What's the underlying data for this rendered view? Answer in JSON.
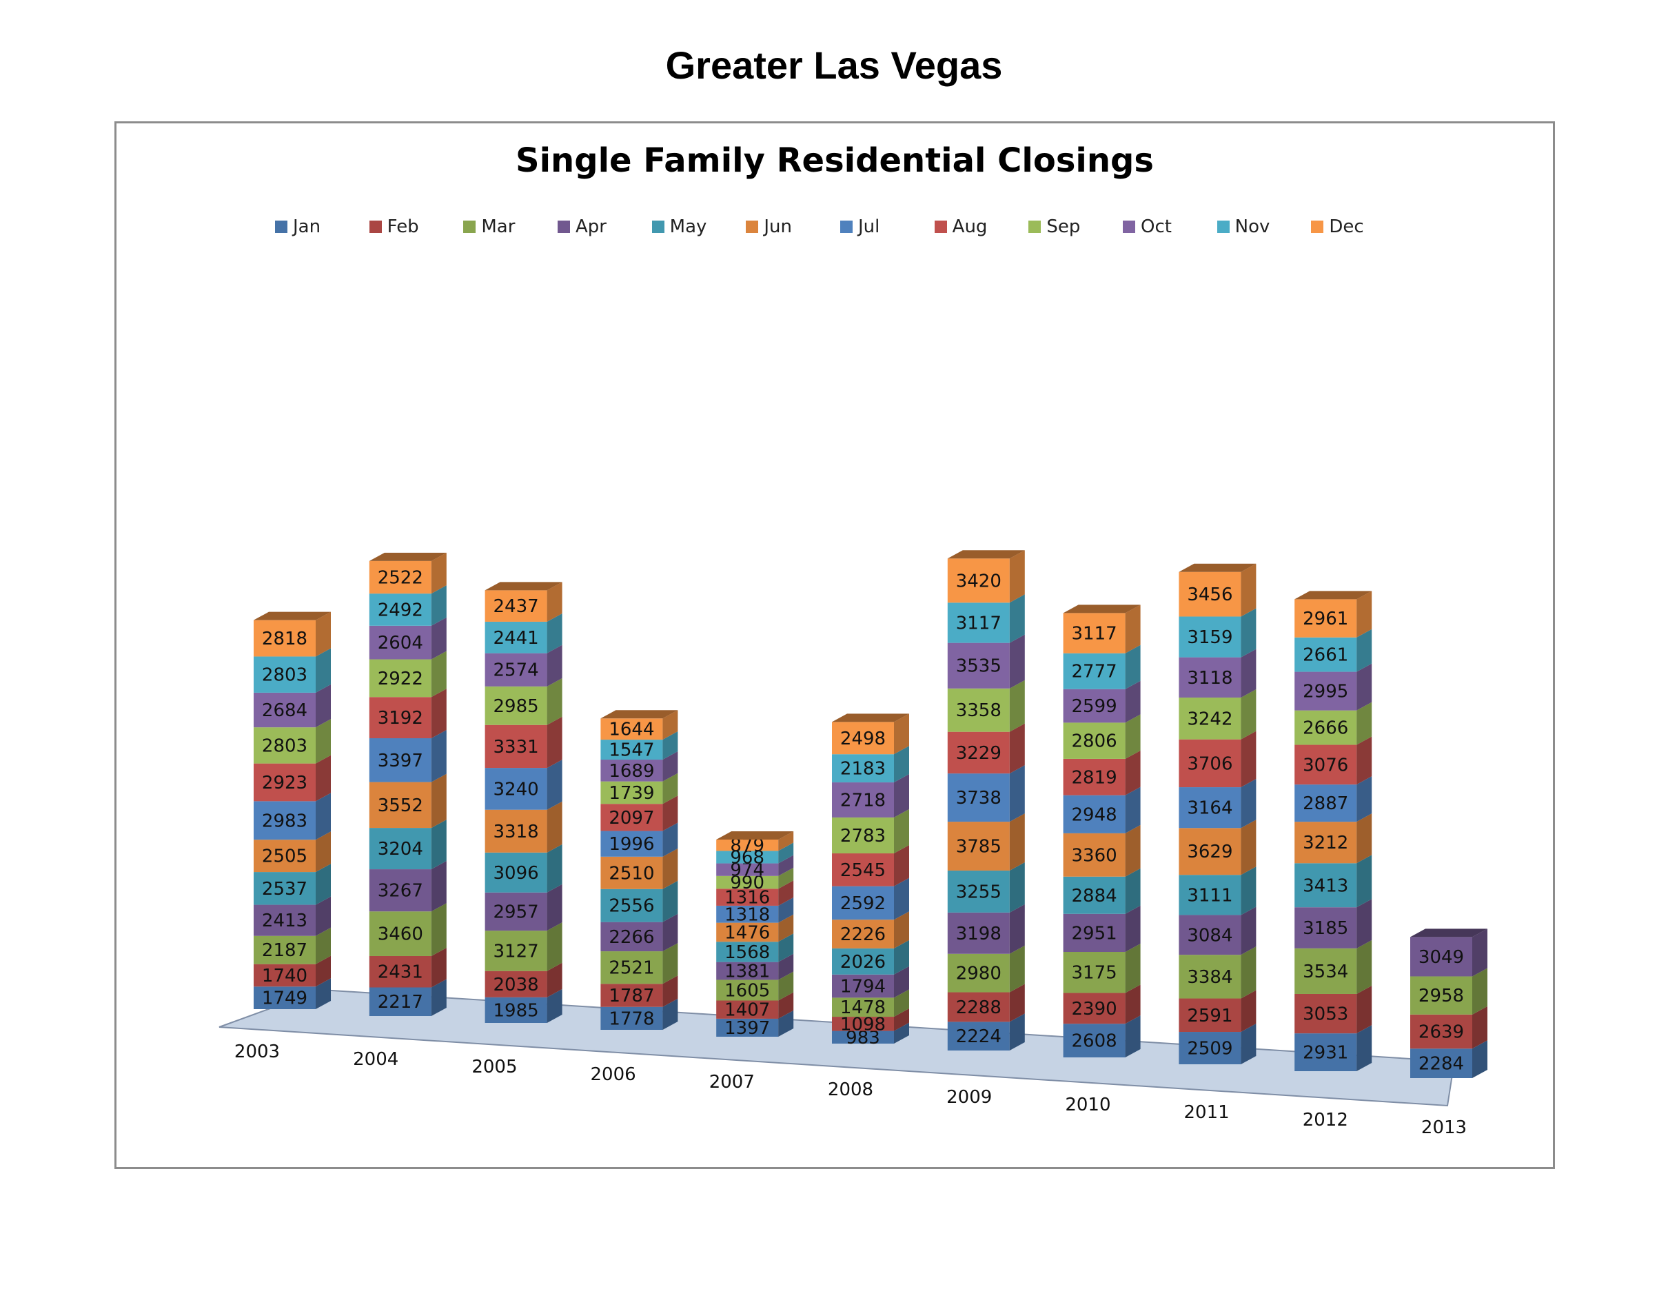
{
  "page_title": "Greater Las Vegas",
  "chart_data": {
    "type": "bar",
    "stacked": true,
    "style": "3d",
    "title": "Single Family Residential Closings",
    "xlabel": "",
    "ylabel": "",
    "legend_position": "top",
    "categories": [
      "2003",
      "2004",
      "2005",
      "2006",
      "2007",
      "2008",
      "2009",
      "2010",
      "2011",
      "2012",
      "2013"
    ],
    "series": [
      {
        "name": "Jan",
        "color": "#4572A7",
        "values": [
          1749,
          2217,
          1985,
          1778,
          1397,
          983,
          2224,
          2608,
          2509,
          2931,
          2284
        ]
      },
      {
        "name": "Feb",
        "color": "#AA4643",
        "values": [
          1740,
          2431,
          2038,
          1787,
          1407,
          1098,
          2288,
          2390,
          2591,
          3053,
          2639
        ]
      },
      {
        "name": "Mar",
        "color": "#89A54E",
        "values": [
          2187,
          3460,
          3127,
          2521,
          1605,
          1478,
          2980,
          3175,
          3384,
          3534,
          2958
        ]
      },
      {
        "name": "Apr",
        "color": "#71588F",
        "values": [
          2413,
          3267,
          2957,
          2266,
          1381,
          1794,
          3198,
          2951,
          3084,
          3185,
          3049
        ]
      },
      {
        "name": "May",
        "color": "#4198AF",
        "values": [
          2537,
          3204,
          3096,
          2556,
          1568,
          2026,
          3255,
          2884,
          3111,
          3413,
          null
        ]
      },
      {
        "name": "Jun",
        "color": "#DB843D",
        "values": [
          2505,
          3552,
          3318,
          2510,
          1476,
          2226,
          3785,
          3360,
          3629,
          3212,
          null
        ]
      },
      {
        "name": "Jul",
        "color": "#4F81BD",
        "values": [
          2983,
          3397,
          3240,
          1996,
          1318,
          2592,
          3738,
          2948,
          3164,
          2887,
          null
        ]
      },
      {
        "name": "Aug",
        "color": "#C0504D",
        "values": [
          2923,
          3192,
          3331,
          2097,
          1316,
          2545,
          3229,
          2819,
          3706,
          3076,
          null
        ]
      },
      {
        "name": "Sep",
        "color": "#9BBB59",
        "values": [
          2803,
          2922,
          2985,
          1739,
          990,
          2783,
          3358,
          2806,
          3242,
          2666,
          null
        ]
      },
      {
        "name": "Oct",
        "color": "#8064A2",
        "values": [
          2684,
          2604,
          2574,
          1689,
          974,
          2718,
          3535,
          2599,
          3118,
          2995,
          null
        ]
      },
      {
        "name": "Nov",
        "color": "#4BACC6",
        "values": [
          2803,
          2492,
          2441,
          1547,
          968,
          2183,
          3117,
          2777,
          3159,
          2661,
          null
        ]
      },
      {
        "name": "Dec",
        "color": "#F79646",
        "values": [
          2818,
          2522,
          2437,
          1644,
          879,
          2498,
          3420,
          3117,
          3456,
          2961,
          null
        ]
      }
    ]
  }
}
